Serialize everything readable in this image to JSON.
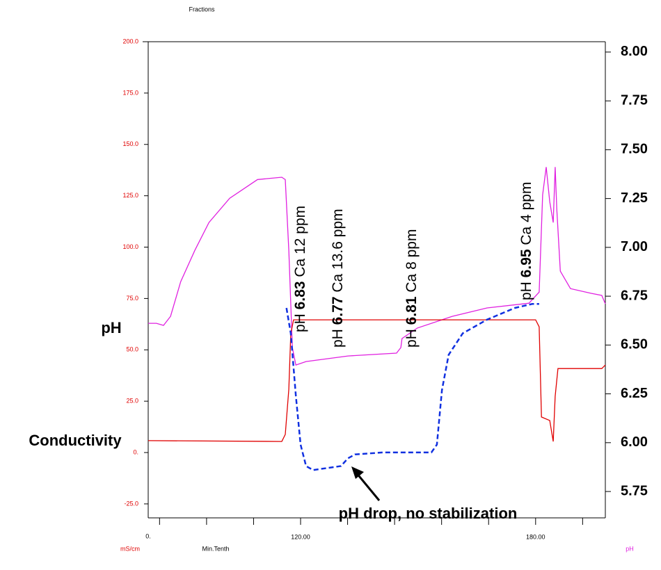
{
  "chart_data": {
    "type": "line",
    "title": "Fractions",
    "x_label": "Min.Tenth",
    "y_label": "mS/cm",
    "y2_label": "pH",
    "x_start_label": "0.",
    "xlim": [
      81.1,
      197.8
    ],
    "xticks": [
      {
        "value": 120,
        "label": "120.00"
      },
      {
        "value": 180,
        "label": "180.00"
      }
    ],
    "xminorticks": [
      84,
      96,
      108,
      132,
      144,
      156,
      168,
      192
    ],
    "ylim": [
      -31.8,
      200
    ],
    "yticks": [
      {
        "value": 200,
        "label": "200.0"
      },
      {
        "value": 175,
        "label": "175.0"
      },
      {
        "value": 150,
        "label": "150.0"
      },
      {
        "value": 125,
        "label": "125.0"
      },
      {
        "value": 100,
        "label": "100.0"
      },
      {
        "value": 75,
        "label": "75.0"
      },
      {
        "value": 50,
        "label": "50.0"
      },
      {
        "value": 25,
        "label": "25.0"
      },
      {
        "value": 0,
        "label": "0."
      },
      {
        "value": -25,
        "label": "-25.0"
      }
    ],
    "y2lim": [
      5.615,
      8.053
    ],
    "y2ticks": [
      {
        "value": 8,
        "label": "8.00"
      },
      {
        "value": 7.75,
        "label": "7.75"
      },
      {
        "value": 7.5,
        "label": "7.50"
      },
      {
        "value": 7.25,
        "label": "7.25"
      },
      {
        "value": 7,
        "label": "7.00"
      },
      {
        "value": 6.75,
        "label": "6.75"
      },
      {
        "value": 6.5,
        "label": "6.50"
      },
      {
        "value": 6.25,
        "label": "6.25"
      },
      {
        "value": 6,
        "label": "6.00"
      },
      {
        "value": 5.75,
        "label": "5.75"
      }
    ],
    "series": [
      {
        "color": "#e020e0",
        "dashed": false,
        "x": [
          81.1,
          83.2,
          85.0,
          86.8,
          89.4,
          93.0,
          96.6,
          101.9,
          109.0,
          115.2,
          116.1,
          117.0,
          117.9,
          118.8,
          121.4,
          132.1,
          144.5,
          145.6,
          145.9,
          149.8,
          158.7,
          167.6,
          178.3,
          180.9,
          181.8,
          182.7,
          183.6,
          184.5,
          185.0,
          185.4,
          186.3,
          188.9,
          194.2,
          196.9,
          197.8
        ],
        "values": [
          62.9,
          62.9,
          61.9,
          66.3,
          83.2,
          98.4,
          112.0,
          123.8,
          132.9,
          134.0,
          132.9,
          98.4,
          51.1,
          42.6,
          44.3,
          47.0,
          48.4,
          51.1,
          55.5,
          60.6,
          66.3,
          70.4,
          72.7,
          78.1,
          125.5,
          139.0,
          122.1,
          112.0,
          139.0,
          118.7,
          88.3,
          79.8,
          77.5,
          76.5,
          72.4
        ]
      },
      {
        "color": "#e00000",
        "dashed": false,
        "x": [
          81.1,
          115.2,
          116.1,
          117.0,
          117.5,
          118.2,
          180.0,
          180.9,
          181.5,
          183.6,
          184.5,
          185.0,
          185.7,
          196.9,
          197.8
        ],
        "values": [
          5.8,
          5.4,
          8.8,
          30.8,
          57.8,
          64.6,
          64.6,
          61.2,
          17.3,
          15.6,
          5.4,
          27.4,
          40.9,
          40.9,
          42.6
        ]
      },
      {
        "color": "#1030e0",
        "dashed": true,
        "axis": "y2",
        "x": [
          116.4,
          117.5,
          118.8,
          120.0,
          121.4,
          123.2,
          126.7,
          130.3,
          132.1,
          133.9,
          141.0,
          153.4,
          154.8,
          156.1,
          157.8,
          161.4,
          167.6,
          174.7,
          179.1,
          180.9
        ],
        "values": [
          6.69,
          6.56,
          6.24,
          5.99,
          5.88,
          5.86,
          5.87,
          5.88,
          5.92,
          5.94,
          5.95,
          5.95,
          5.99,
          6.27,
          6.45,
          6.56,
          6.63,
          6.69,
          6.71,
          6.71
        ]
      }
    ],
    "annotations": [
      {
        "prefix": "pH ",
        "bold": "6.83",
        "suffix": "  Ca 12 ppm"
      },
      {
        "prefix": "pH ",
        "bold": "6.77",
        "suffix": " Ca 13.6 ppm"
      },
      {
        "prefix": "pH ",
        "bold": "6.81",
        "suffix": " Ca 8 ppm"
      },
      {
        "prefix": "pH ",
        "bold": "6.95",
        "suffix": " Ca 4 ppm"
      }
    ],
    "side_labels": [
      "pH",
      "Conductivity"
    ],
    "arrow_note": "pH drop, no stabilization"
  }
}
